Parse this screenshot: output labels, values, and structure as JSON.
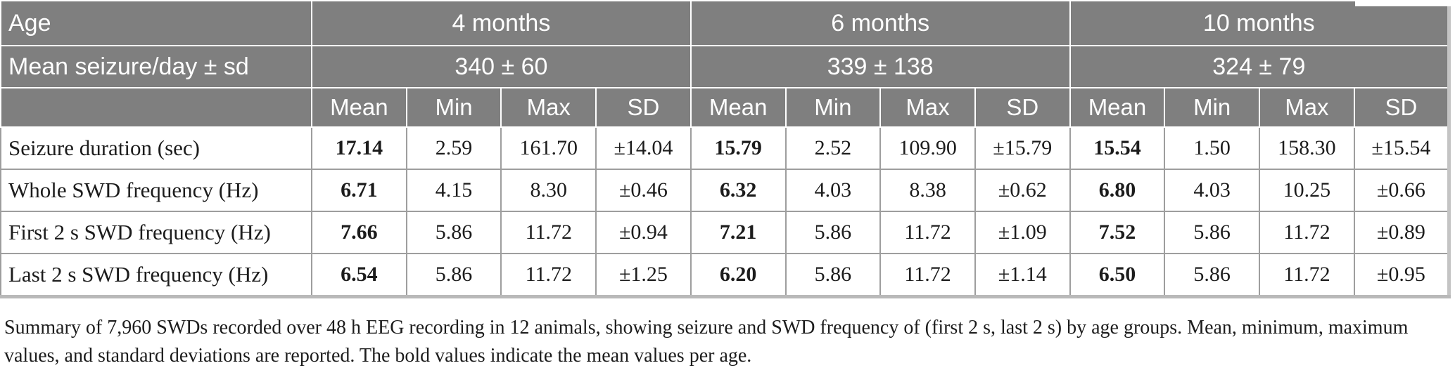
{
  "table": {
    "corner_label": "Age",
    "seizure_row_label": "Mean seizure/day ± sd",
    "age_groups": [
      {
        "label": "4 months",
        "mean_seizure_per_day": "340 ± 60"
      },
      {
        "label": "6 months",
        "mean_seizure_per_day": "339 ± 138"
      },
      {
        "label": "10 months",
        "mean_seizure_per_day": "324 ± 79"
      }
    ],
    "stat_headers": [
      "Mean",
      "Min",
      "Max",
      "SD"
    ],
    "rows": [
      {
        "label": "Seizure duration (sec)",
        "values": [
          "17.14",
          "2.59",
          "161.70",
          "±14.04",
          "15.79",
          "2.52",
          "109.90",
          "±15.79",
          "15.54",
          "1.50",
          "158.30",
          "±15.54"
        ]
      },
      {
        "label": "Whole SWD frequency (Hz)",
        "values": [
          "6.71",
          "4.15",
          "8.30",
          "±0.46",
          "6.32",
          "4.03",
          "8.38",
          "±0.62",
          "6.80",
          "4.03",
          "10.25",
          "±0.66"
        ]
      },
      {
        "label": "First 2 s SWD frequency (Hz)",
        "values": [
          "7.66",
          "5.86",
          "11.72",
          "±0.94",
          "7.21",
          "5.86",
          "11.72",
          "±1.09",
          "7.52",
          "5.86",
          "11.72",
          "±0.89"
        ]
      },
      {
        "label": "Last 2 s SWD frequency (Hz)",
        "values": [
          "6.54",
          "5.86",
          "11.72",
          "±1.25",
          "6.20",
          "5.86",
          "11.72",
          "±1.14",
          "6.50",
          "5.86",
          "11.72",
          "±0.95"
        ]
      }
    ],
    "caption": "Summary of 7,960 SWDs recorded over 48 h EEG recording in 12 animals, showing seizure and SWD frequency of (first 2 s, last 2 s) by age groups. Mean, minimum, maximum values, and standard deviations are reported. The bold values indicate the mean values per age."
  },
  "colors": {
    "header_bg": "#7f7f7f",
    "header_text": "#ffffff",
    "grid_border": "#9e9e9e",
    "outer_border": "#b9b9b9",
    "body_text": "#1c1c1c"
  }
}
